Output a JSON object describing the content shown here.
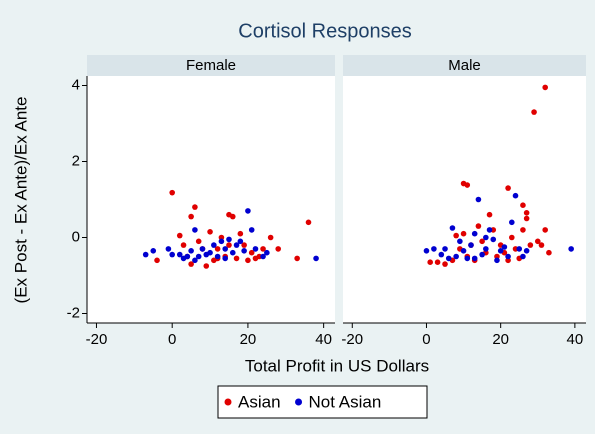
{
  "chart_data": {
    "type": "scatter",
    "title": "Cortisol Responses",
    "x_label": "Total Profit in US Dollars",
    "y_label": "(Ex Post - Ex Ante)/Ex Ante",
    "xlim": [
      -22.5,
      43
    ],
    "ylim": [
      -2.25,
      4.25
    ],
    "xticks": [
      -20,
      0,
      20,
      40
    ],
    "yticks": [
      -2,
      0,
      2,
      4
    ],
    "grid": false,
    "series": [
      {
        "name": "Asian",
        "color": "#e00000"
      },
      {
        "name": "Not Asian",
        "color": "#0000d0"
      }
    ],
    "panels": [
      {
        "label": "Female",
        "series": [
          {
            "x": [
              0,
              2,
              5,
              6,
              -4,
              3,
              4,
              5,
              8,
              9,
              10,
              11,
              12,
              13,
              14,
              15,
              16,
              17,
              18,
              19,
              20,
              21,
              22,
              23,
              24,
              26,
              28,
              33,
              36,
              15,
              12,
              7
            ],
            "y": [
              1.18,
              0.05,
              0.55,
              0.8,
              -0.6,
              -0.2,
              -0.5,
              -0.7,
              -0.3,
              -0.75,
              0.15,
              -0.6,
              -0.3,
              0.0,
              -0.5,
              0.6,
              0.55,
              -0.55,
              0.1,
              -0.2,
              -0.6,
              -0.4,
              -0.55,
              -0.5,
              -0.3,
              0.0,
              -0.3,
              -0.55,
              0.4,
              -0.2,
              -0.55,
              -0.1
            ]
          },
          {
            "x": [
              -7,
              -5,
              -1,
              0,
              2,
              3,
              4,
              5,
              6,
              7,
              8,
              9,
              10,
              11,
              12,
              13,
              14,
              15,
              16,
              17,
              18,
              19,
              20,
              21,
              22,
              24,
              25,
              38,
              6,
              14
            ],
            "y": [
              -0.45,
              -0.35,
              -0.3,
              -0.45,
              -0.45,
              -0.55,
              -0.5,
              -0.35,
              -0.6,
              -0.5,
              -0.3,
              -0.45,
              -0.4,
              -0.2,
              -0.5,
              -0.1,
              -0.3,
              -0.05,
              -0.4,
              -0.2,
              -0.1,
              -0.35,
              0.7,
              0.2,
              -0.3,
              -0.5,
              -0.4,
              -0.55,
              0.2,
              -0.55
            ]
          }
        ]
      },
      {
        "label": "Male",
        "series": [
          {
            "x": [
              32,
              29,
              10,
              11,
              22,
              17,
              26,
              27,
              27,
              3,
              5,
              7,
              9,
              10,
              11,
              12,
              13,
              14,
              15,
              16,
              18,
              19,
              20,
              21,
              22,
              23,
              24,
              25,
              26,
              28,
              30,
              31,
              32,
              33,
              8,
              1
            ],
            "y": [
              3.95,
              3.3,
              1.42,
              1.38,
              1.3,
              0.6,
              0.85,
              0.65,
              0.5,
              -0.65,
              -0.7,
              -0.6,
              -0.3,
              0.1,
              -0.5,
              -0.2,
              -0.6,
              0.3,
              -0.1,
              -0.4,
              0.2,
              -0.5,
              -0.2,
              -0.4,
              -0.6,
              0.0,
              -0.3,
              -0.55,
              0.2,
              -0.2,
              -0.1,
              -0.2,
              0.2,
              -0.4,
              0.05,
              -0.65
            ]
          },
          {
            "x": [
              0,
              2,
              4,
              5,
              6,
              7,
              8,
              9,
              10,
              11,
              12,
              13,
              14,
              15,
              16,
              17,
              18,
              19,
              20,
              21,
              22,
              23,
              24,
              25,
              26,
              27,
              39,
              13,
              16
            ],
            "y": [
              -0.35,
              -0.3,
              -0.45,
              -0.3,
              -0.55,
              0.25,
              -0.5,
              -0.1,
              -0.35,
              -0.55,
              -0.2,
              0.1,
              1.0,
              -0.45,
              -0.3,
              0.2,
              -0.05,
              -0.6,
              -0.35,
              -0.25,
              -0.5,
              0.4,
              1.1,
              -0.3,
              -0.5,
              -0.35,
              -0.3,
              -0.55,
              0.0
            ]
          }
        ]
      }
    ]
  }
}
